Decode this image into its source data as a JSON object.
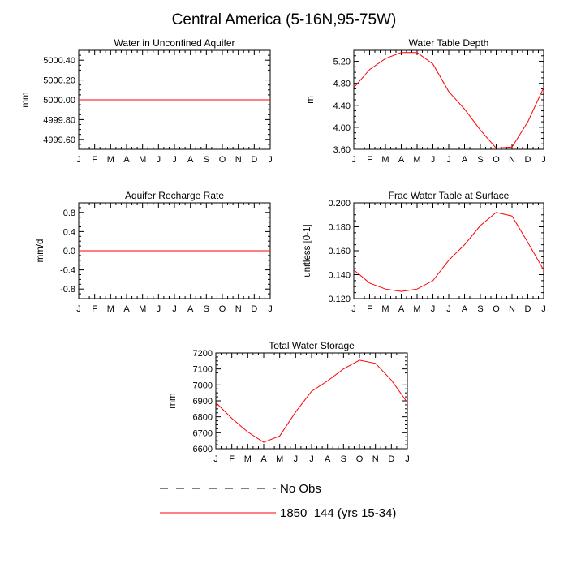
{
  "figure_title": "Central America (5-16N,95-75W)",
  "months": [
    "J",
    "F",
    "M",
    "A",
    "M",
    "J",
    "J",
    "A",
    "S",
    "O",
    "N",
    "D",
    "J"
  ],
  "legend": [
    {
      "label": "No Obs",
      "color": "#000000",
      "dash": true
    },
    {
      "label": "1850_144 (yrs 15-34)",
      "color": "#ff0000",
      "dash": false
    }
  ],
  "chart_data": [
    {
      "type": "line",
      "title": "Water in Unconfined Aquifer",
      "ylabel": "mm",
      "ylim": [
        4999.5,
        5000.5
      ],
      "yticks": [
        4999.6,
        4999.8,
        5000.0,
        5000.2,
        5000.4
      ],
      "ytick_labels": [
        "4999.60",
        "4999.80",
        "5000.00",
        "5000.20",
        "5000.40"
      ],
      "x": [
        "J",
        "F",
        "M",
        "A",
        "M",
        "J",
        "J",
        "A",
        "S",
        "O",
        "N",
        "D",
        "J"
      ],
      "series": [
        {
          "color": "#ff0000",
          "values": [
            5000,
            5000,
            5000,
            5000,
            5000,
            5000,
            5000,
            5000,
            5000,
            5000,
            5000,
            5000,
            5000
          ]
        }
      ]
    },
    {
      "type": "line",
      "title": "Water Table Depth",
      "ylabel": "m",
      "ylim": [
        3.6,
        5.4
      ],
      "yticks": [
        3.6,
        4.0,
        4.4,
        4.8,
        5.2
      ],
      "ytick_labels": [
        "3.60",
        "4.00",
        "4.40",
        "4.80",
        "5.20"
      ],
      "x": [
        "J",
        "F",
        "M",
        "A",
        "M",
        "J",
        "J",
        "A",
        "S",
        "O",
        "N",
        "D",
        "J"
      ],
      "series": [
        {
          "color": "#ff0000",
          "values": [
            4.72,
            5.05,
            5.25,
            5.36,
            5.36,
            5.15,
            4.65,
            4.33,
            3.95,
            3.62,
            3.64,
            4.1,
            4.72
          ]
        }
      ]
    },
    {
      "type": "line",
      "title": "Aquifer Recharge Rate",
      "ylabel": "mm/d",
      "ylim": [
        -1.0,
        1.0
      ],
      "yticks": [
        -0.8,
        -0.4,
        0.0,
        0.4,
        0.8
      ],
      "ytick_labels": [
        "-0.8",
        "-0.4",
        "0.0",
        "0.4",
        "0.8"
      ],
      "x": [
        "J",
        "F",
        "M",
        "A",
        "M",
        "J",
        "J",
        "A",
        "S",
        "O",
        "N",
        "D",
        "J"
      ],
      "series": [
        {
          "color": "#ff0000",
          "values": [
            0,
            0,
            0,
            0,
            0,
            0,
            0,
            0,
            0,
            0,
            0,
            0,
            0
          ]
        }
      ]
    },
    {
      "type": "line",
      "title": "Frac Water Table at Surface",
      "ylabel": "unitless [0-1]",
      "ylim": [
        0.12,
        0.2
      ],
      "yticks": [
        0.12,
        0.14,
        0.16,
        0.18,
        0.2
      ],
      "ytick_labels": [
        "0.120",
        "0.140",
        "0.160",
        "0.180",
        "0.200"
      ],
      "x": [
        "J",
        "F",
        "M",
        "A",
        "M",
        "J",
        "J",
        "A",
        "S",
        "O",
        "N",
        "D",
        "J"
      ],
      "series": [
        {
          "color": "#ff0000",
          "values": [
            0.144,
            0.133,
            0.128,
            0.126,
            0.128,
            0.135,
            0.152,
            0.165,
            0.181,
            0.192,
            0.189,
            0.167,
            0.144
          ]
        }
      ]
    },
    {
      "type": "line",
      "title": "Total Water Storage",
      "ylabel": "mm",
      "ylim": [
        6600,
        7200
      ],
      "yticks": [
        6600,
        6700,
        6800,
        6900,
        7000,
        7100,
        7200
      ],
      "ytick_labels": [
        "6600",
        "6700",
        "6800",
        "6900",
        "7000",
        "7100",
        "7200"
      ],
      "x": [
        "J",
        "F",
        "M",
        "A",
        "M",
        "J",
        "J",
        "A",
        "S",
        "O",
        "N",
        "D",
        "J"
      ],
      "series": [
        {
          "color": "#ff0000",
          "values": [
            6890,
            6790,
            6705,
            6640,
            6680,
            6830,
            6960,
            7025,
            7100,
            7155,
            7135,
            7030,
            6890
          ]
        }
      ]
    }
  ]
}
